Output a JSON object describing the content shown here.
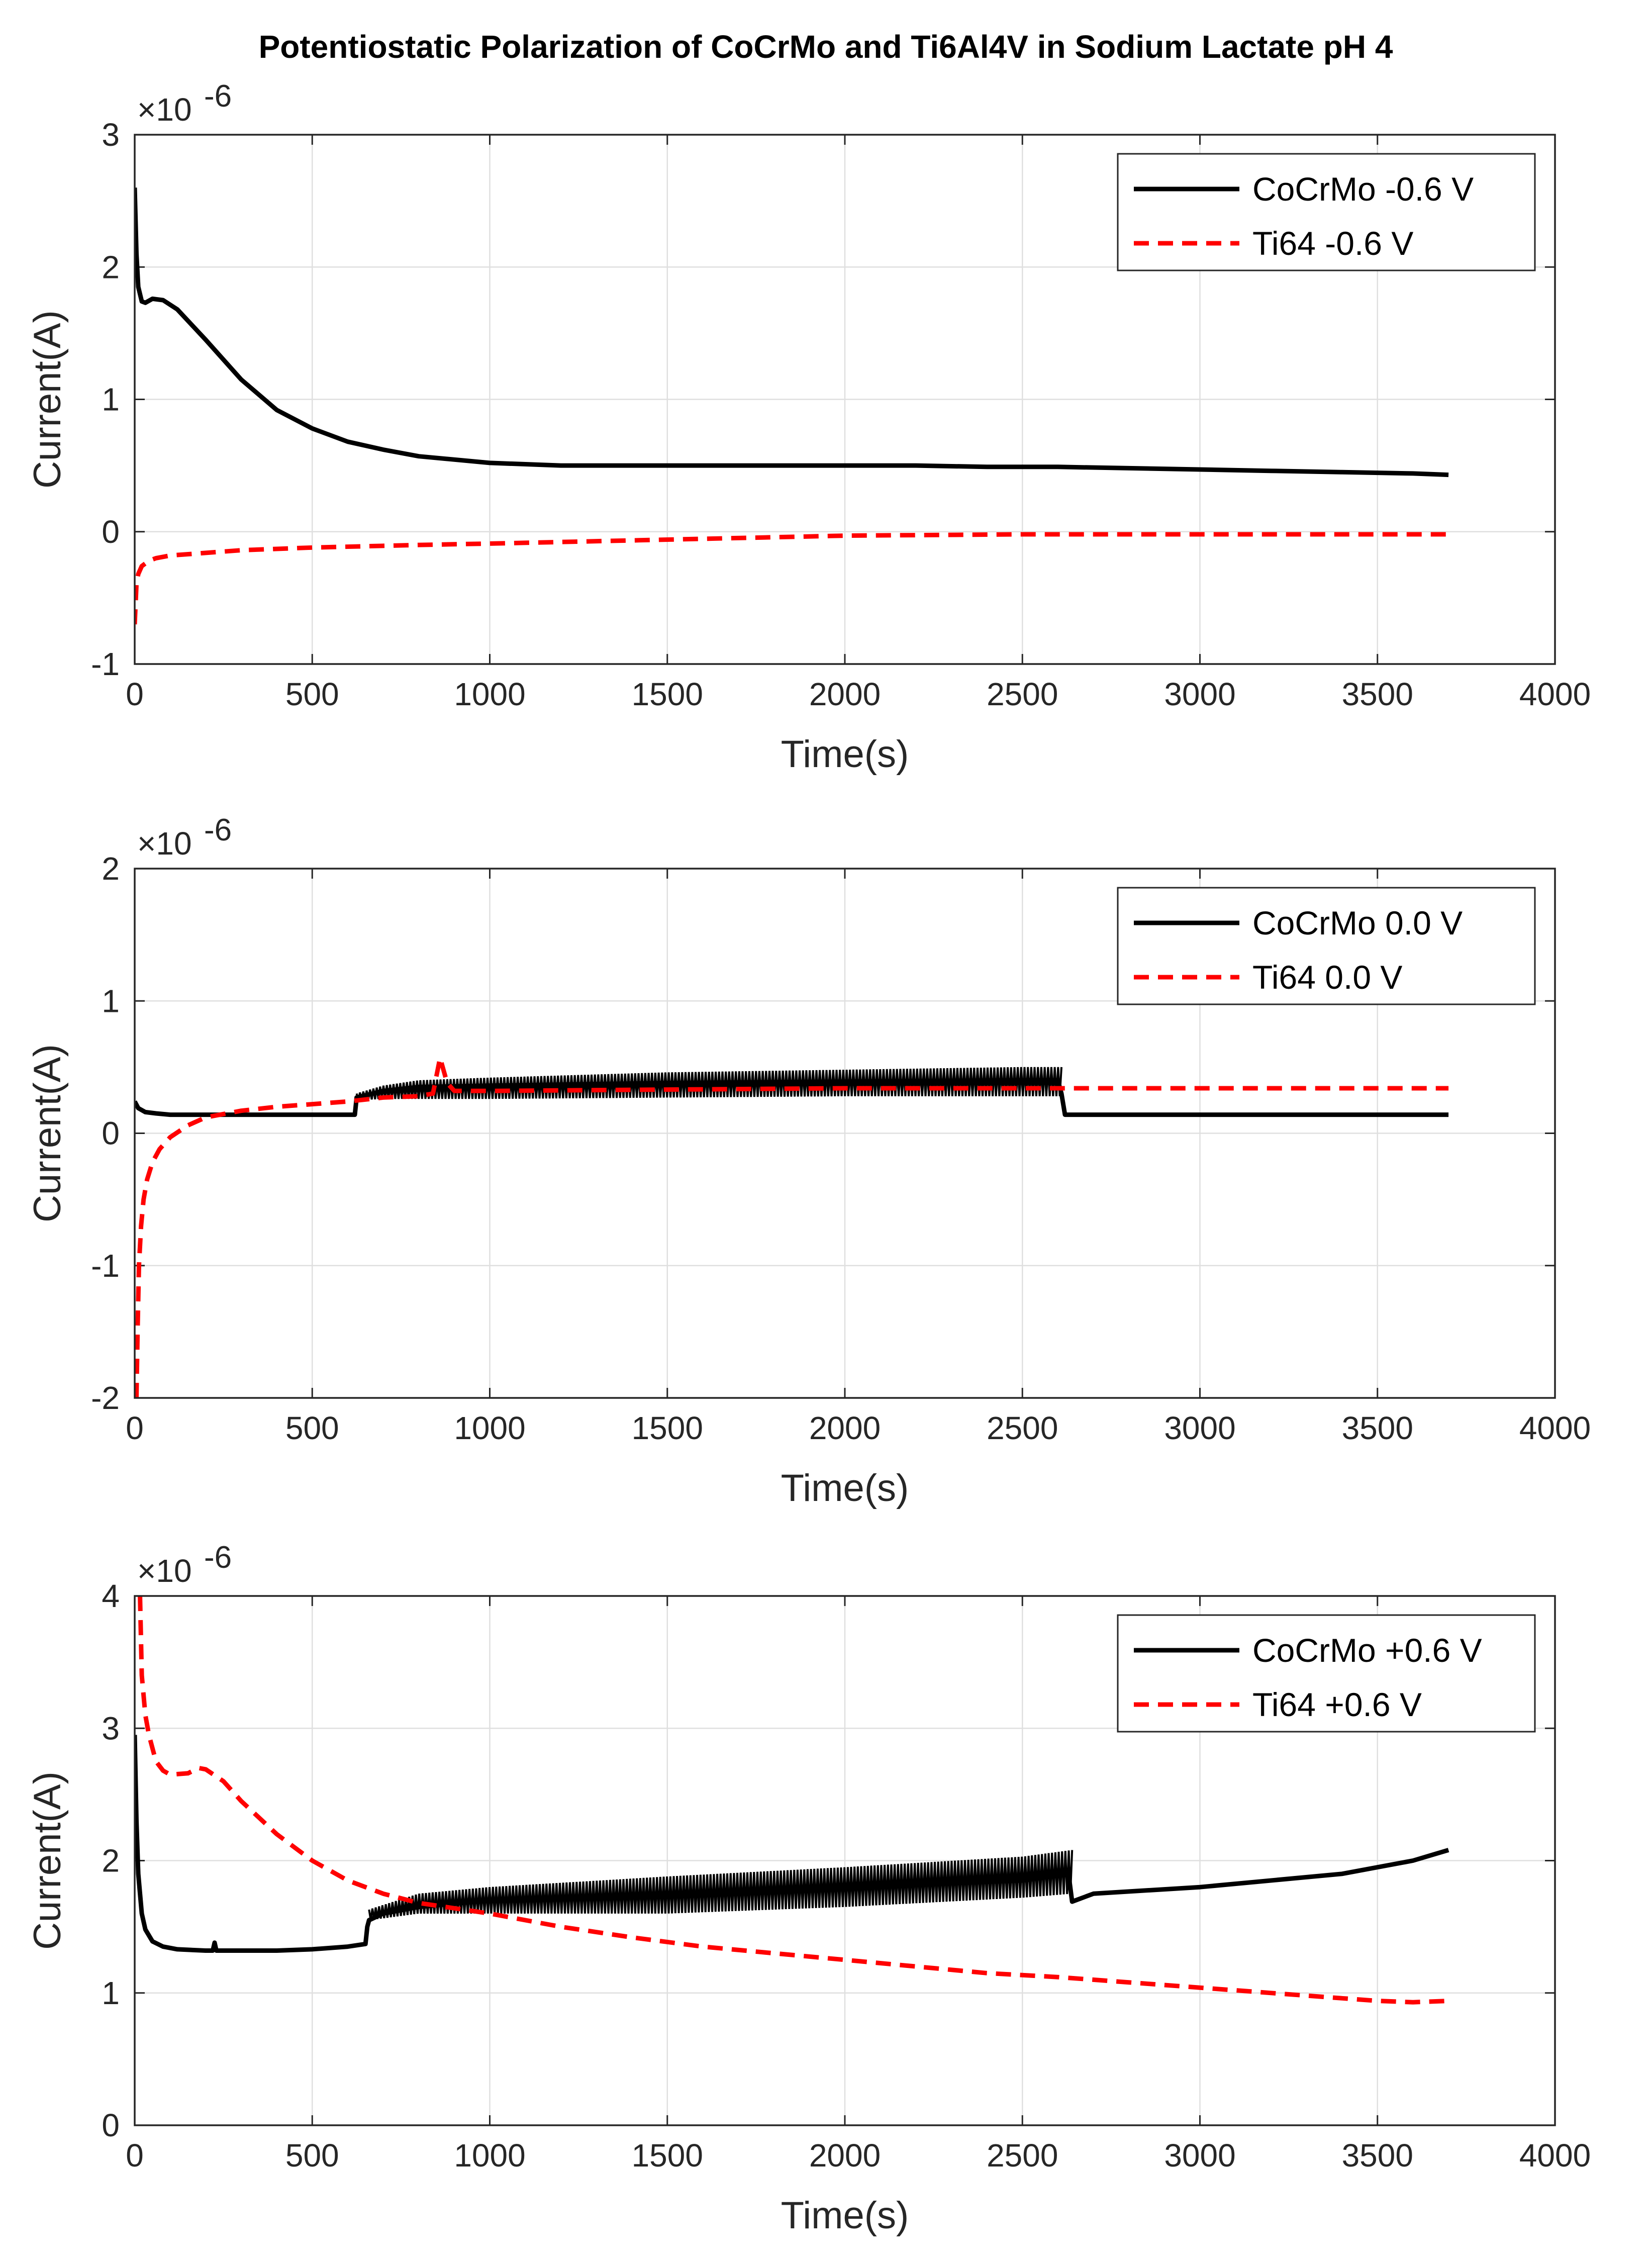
{
  "figure_title": "Potentiostatic Polarization of CoCrMo and Ti6Al4V in Sodium Lactate pH 4",
  "chart_data": [
    {
      "type": "line",
      "xlabel": "Time(s)",
      "ylabel": "Current(A)",
      "y_multiplier": "×10",
      "y_exponent": "-6",
      "xlim": [
        0,
        4000
      ],
      "ylim": [
        -1,
        3
      ],
      "x_ticks": [
        "0",
        "500",
        "1000",
        "1500",
        "2000",
        "2500",
        "3000",
        "3500",
        "4000"
      ],
      "y_ticks": [
        "-1",
        "0",
        "1",
        "2",
        "3"
      ],
      "grid": true,
      "legend_position": "top-right",
      "series": [
        {
          "name": "CoCrMo -0.6 V",
          "color": "#000000",
          "style": "solid",
          "x": [
            0,
            5,
            10,
            20,
            30,
            50,
            80,
            120,
            200,
            300,
            400,
            500,
            600,
            700,
            800,
            1000,
            1200,
            1400,
            1600,
            1800,
            2000,
            2200,
            2400,
            2600,
            2800,
            3000,
            3200,
            3400,
            3600,
            3700
          ],
          "y": [
            2.6,
            2.1,
            1.85,
            1.74,
            1.73,
            1.76,
            1.75,
            1.68,
            1.45,
            1.15,
            0.92,
            0.78,
            0.68,
            0.62,
            0.57,
            0.52,
            0.5,
            0.5,
            0.5,
            0.5,
            0.5,
            0.5,
            0.49,
            0.49,
            0.48,
            0.47,
            0.46,
            0.45,
            0.44,
            0.43
          ]
        },
        {
          "name": "Ti64 -0.6 V",
          "color": "#ff0000",
          "style": "dashed",
          "x": [
            0,
            5,
            10,
            20,
            40,
            60,
            100,
            200,
            300,
            500,
            800,
            1000,
            1500,
            2000,
            2500,
            3000,
            3500,
            3700
          ],
          "y": [
            -0.7,
            -0.4,
            -0.32,
            -0.26,
            -0.22,
            -0.2,
            -0.18,
            -0.16,
            -0.14,
            -0.12,
            -0.1,
            -0.09,
            -0.06,
            -0.03,
            -0.02,
            -0.02,
            -0.02,
            -0.02
          ]
        }
      ]
    },
    {
      "type": "line",
      "xlabel": "Time(s)",
      "ylabel": "Current(A)",
      "y_multiplier": "×10",
      "y_exponent": "-6",
      "xlim": [
        0,
        4000
      ],
      "ylim": [
        -2,
        2
      ],
      "x_ticks": [
        "0",
        "500",
        "1000",
        "1500",
        "2000",
        "2500",
        "3000",
        "3500",
        "4000"
      ],
      "y_ticks": [
        "-2",
        "-1",
        "0",
        "1",
        "2"
      ],
      "grid": true,
      "legend_position": "top-right",
      "series": [
        {
          "name": "CoCrMo 0.0 V",
          "color": "#000000",
          "style": "solid",
          "x": [
            0,
            10,
            30,
            60,
            100,
            200,
            300,
            400,
            500,
            600,
            620,
            625,
            700,
            800,
            1000,
            1500,
            2000,
            2500,
            2600,
            2610,
            2620,
            3000,
            3500,
            3700
          ],
          "y": [
            0.24,
            0.19,
            0.16,
            0.15,
            0.14,
            0.14,
            0.14,
            0.14,
            0.14,
            0.14,
            0.14,
            0.27,
            0.32,
            0.35,
            0.36,
            0.38,
            0.39,
            0.4,
            0.4,
            0.3,
            0.14,
            0.14,
            0.14,
            0.14
          ],
          "oscillation": {
            "x": [
              625,
              700,
              800,
              1000,
              1500,
              2000,
              2500,
              2610
            ],
            "upper": [
              0.3,
              0.36,
              0.4,
              0.42,
              0.46,
              0.48,
              0.5,
              0.5
            ],
            "lower": [
              0.25,
              0.26,
              0.26,
              0.26,
              0.27,
              0.28,
              0.28,
              0.28
            ]
          }
        },
        {
          "name": "Ti64 0.0 V",
          "color": "#ff0000",
          "style": "dashed",
          "x": [
            5,
            8,
            12,
            18,
            25,
            35,
            50,
            70,
            100,
            150,
            200,
            300,
            400,
            500,
            600,
            700,
            800,
            840,
            860,
            880,
            900,
            1000,
            1500,
            2000,
            2500,
            3000,
            3500,
            3700
          ],
          "y": [
            -2.0,
            -1.5,
            -1.0,
            -0.7,
            -0.5,
            -0.35,
            -0.22,
            -0.12,
            -0.03,
            0.06,
            0.12,
            0.17,
            0.2,
            0.22,
            0.24,
            0.27,
            0.28,
            0.3,
            0.57,
            0.38,
            0.32,
            0.32,
            0.33,
            0.34,
            0.34,
            0.34,
            0.34,
            0.34
          ]
        }
      ]
    },
    {
      "type": "line",
      "xlabel": "Time(s)",
      "ylabel": "Current(A)",
      "y_multiplier": "×10",
      "y_exponent": "-6",
      "xlim": [
        0,
        4000
      ],
      "ylim": [
        0,
        4
      ],
      "x_ticks": [
        "0",
        "500",
        "1000",
        "1500",
        "2000",
        "2500",
        "3000",
        "3500",
        "4000"
      ],
      "y_ticks": [
        "0",
        "1",
        "2",
        "3",
        "4"
      ],
      "grid": true,
      "legend_position": "top-right",
      "series": [
        {
          "name": "CoCrMo +0.6 V",
          "color": "#000000",
          "style": "solid",
          "x": [
            0,
            5,
            10,
            20,
            30,
            50,
            80,
            120,
            200,
            220,
            225,
            230,
            300,
            400,
            500,
            600,
            650,
            655,
            660,
            700,
            800,
            1000,
            1500,
            2000,
            2500,
            2630,
            2640,
            2650,
            2700,
            3000,
            3400,
            3600,
            3700
          ],
          "y": [
            2.95,
            2.3,
            1.9,
            1.6,
            1.48,
            1.39,
            1.35,
            1.33,
            1.32,
            1.32,
            1.38,
            1.32,
            1.32,
            1.32,
            1.33,
            1.35,
            1.37,
            1.5,
            1.55,
            1.6,
            1.65,
            1.7,
            1.75,
            1.8,
            1.85,
            1.9,
            1.69,
            1.7,
            1.75,
            1.8,
            1.9,
            2.0,
            2.08
          ],
          "oscillation": {
            "x": [
              660,
              800,
              1000,
              1500,
              2000,
              2500,
              2640
            ],
            "upper": [
              1.63,
              1.75,
              1.8,
              1.88,
              1.95,
              2.03,
              2.08
            ],
            "lower": [
              1.55,
              1.6,
              1.6,
              1.6,
              1.65,
              1.72,
              1.75
            ]
          }
        },
        {
          "name": "Ti64 +0.6 V",
          "color": "#ff0000",
          "style": "dashed",
          "x": [
            15,
            20,
            30,
            40,
            50,
            60,
            80,
            100,
            150,
            180,
            200,
            250,
            300,
            400,
            500,
            600,
            700,
            800,
            1000,
            1200,
            1400,
            1600,
            1800,
            2000,
            2200,
            2400,
            2600,
            2800,
            3000,
            3200,
            3400,
            3500,
            3600,
            3700
          ],
          "y": [
            4.0,
            3.4,
            3.1,
            2.95,
            2.85,
            2.75,
            2.68,
            2.65,
            2.66,
            2.7,
            2.69,
            2.6,
            2.45,
            2.2,
            2.0,
            1.85,
            1.75,
            1.68,
            1.6,
            1.5,
            1.42,
            1.35,
            1.3,
            1.25,
            1.2,
            1.15,
            1.12,
            1.08,
            1.04,
            1.0,
            0.96,
            0.94,
            0.93,
            0.94
          ]
        }
      ]
    }
  ]
}
